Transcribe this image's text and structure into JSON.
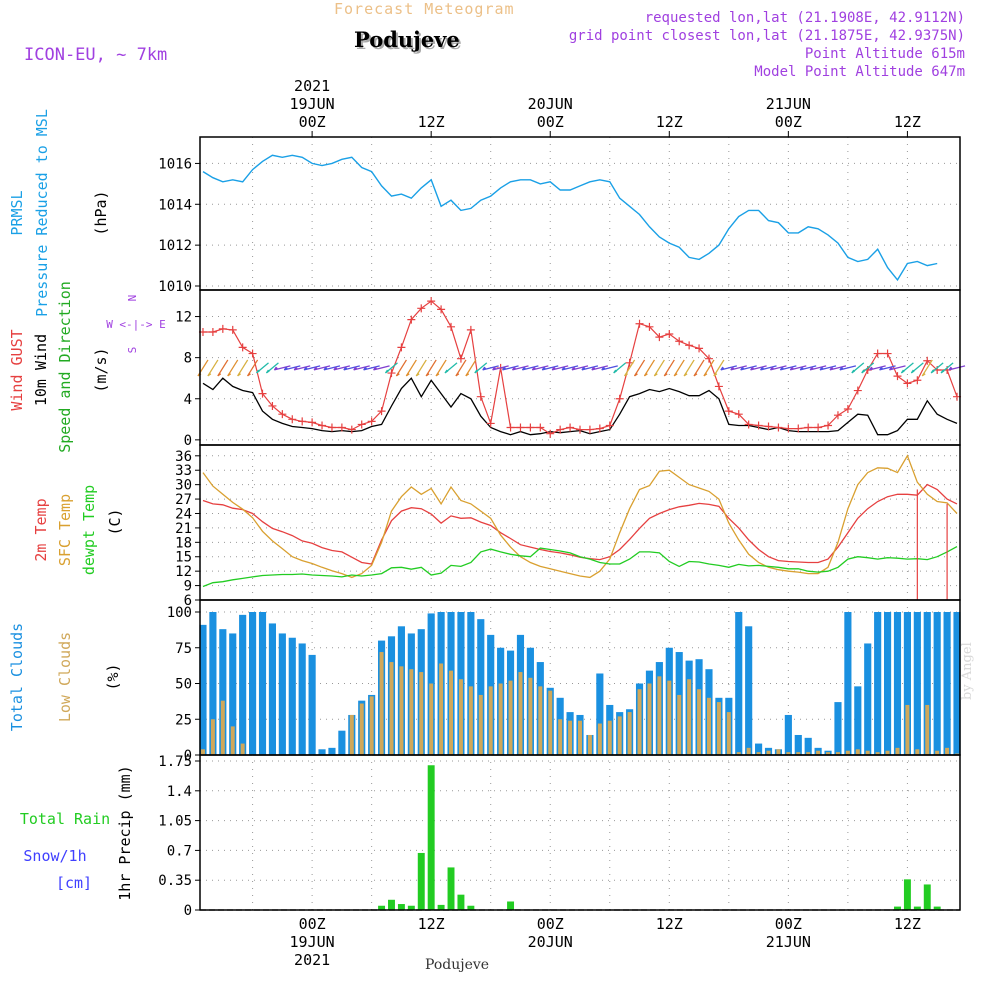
{
  "header": {
    "subtitle": "Forecast Meteogram",
    "location": "Podujeve",
    "model": "ICON-EU, ~ 7km",
    "requested": "requested lon,lat (21.1908E, 42.9112N)",
    "gridpoint": "grid point closest lon,lat (21.1875E, 42.9375N)",
    "point_alt": "Point Altitude 615m",
    "model_alt": "Model Point Altitude 647m",
    "footer": "Podujeve",
    "watermark": "by Angel"
  },
  "colors": {
    "pressure": "#1aa0e6",
    "gust": "#e64040",
    "wind": "#000000",
    "dir": "#22aa22",
    "temp": "#e64040",
    "sfc": "#d9a030",
    "dewpt": "#22cc22",
    "total_clouds": "#1a90e0",
    "low_clouds": "#d0a85a",
    "rain": "#22cc22",
    "snow": "#4040ff",
    "purple": "#a040e0"
  },
  "time_axis": {
    "top_labels": [
      {
        "t": 0,
        "lines": [
          "2021",
          "19JUN",
          "00Z"
        ]
      },
      {
        "t": 12,
        "lines": [
          "12Z"
        ]
      },
      {
        "t": 24,
        "lines": [
          "20JUN",
          "00Z"
        ]
      },
      {
        "t": 36,
        "lines": [
          "12Z"
        ]
      },
      {
        "t": 48,
        "lines": [
          "21JUN",
          "00Z"
        ]
      },
      {
        "t": 60,
        "lines": [
          "12Z"
        ]
      }
    ],
    "bottom_labels": [
      {
        "t": 0,
        "lines": [
          "00Z",
          "19JUN",
          "2021"
        ]
      },
      {
        "t": 12,
        "lines": [
          "12Z"
        ]
      },
      {
        "t": 24,
        "lines": [
          "00Z",
          "20JUN"
        ]
      },
      {
        "t": 36,
        "lines": [
          "12Z"
        ]
      },
      {
        "t": 48,
        "lines": [
          "00Z",
          "21JUN"
        ]
      },
      {
        "t": 60,
        "lines": [
          "12Z"
        ]
      }
    ]
  },
  "panel_labels": {
    "pressure": [
      "PRMSL",
      "Pressure Reduced to MSL",
      "(hPa)"
    ],
    "wind": [
      "Wind GUST",
      "10m Wind",
      "Speed and Direction",
      "(m/s)"
    ],
    "compass": [
      "N",
      "W <-|-> E",
      "S"
    ],
    "temp": [
      "2m Temp",
      "SFC Temp",
      "dewpt Temp",
      "(C)"
    ],
    "clouds": [
      "Total Clouds",
      "Low Clouds",
      "(%)"
    ],
    "precip": [
      "Total Rain",
      "Snow/1h",
      "[cm]",
      "1hr Precip (mm)"
    ]
  },
  "chart_data": [
    {
      "type": "line",
      "title": "PRMSL Pressure Reduced to MSL",
      "ylabel": "(hPa)",
      "ylim": [
        1010,
        1017
      ],
      "yticks": [
        "1010",
        "1012",
        "1014",
        "1016"
      ],
      "t": [
        -11,
        -10,
        -9,
        -8,
        -7,
        -6,
        -5,
        -4,
        -3,
        -2,
        -1,
        0,
        1,
        2,
        3,
        4,
        5,
        6,
        7,
        8,
        9,
        10,
        11,
        12,
        13,
        14,
        15,
        16,
        17,
        18,
        19,
        20,
        21,
        22,
        23,
        24,
        25,
        26,
        27,
        28,
        29,
        30,
        31,
        32,
        33,
        34,
        35,
        36,
        37,
        38,
        39,
        40,
        41,
        42,
        43,
        44,
        45,
        46,
        47,
        48,
        49,
        50,
        51,
        52,
        53,
        54,
        55,
        56,
        57,
        58,
        59,
        60,
        61,
        62,
        63,
        64,
        65
      ],
      "series": [
        {
          "name": "PRMSL",
          "values": [
            1015.6,
            1015.3,
            1015.1,
            1015.2,
            1015.1,
            1015.7,
            1016.1,
            1016.4,
            1016.3,
            1016.4,
            1016.3,
            1016.0,
            1015.9,
            1016.0,
            1016.2,
            1016.3,
            1015.8,
            1015.6,
            1014.9,
            1014.4,
            1014.5,
            1014.3,
            1014.8,
            1015.2,
            1013.9,
            1014.2,
            1013.7,
            1013.8,
            1014.2,
            1014.4,
            1014.8,
            1015.1,
            1015.2,
            1015.2,
            1015.0,
            1015.1,
            1014.7,
            1014.7,
            1014.9,
            1015.1,
            1015.2,
            1015.1,
            1014.3,
            1013.9,
            1013.5,
            1012.9,
            1012.4,
            1012.1,
            1011.9,
            1011.4,
            1011.3,
            1011.6,
            1012.0,
            1012.8,
            1013.4,
            1013.7,
            1013.7,
            1013.2,
            1013.1,
            1012.6,
            1012.6,
            1012.9,
            1012.8,
            1012.5,
            1012.1,
            1011.4,
            1011.2,
            1011.3,
            1011.8,
            1010.9,
            1010.3,
            1011.1,
            1011.2,
            1011.0,
            1011.1
          ]
        }
      ]
    },
    {
      "type": "line",
      "title": "Wind GUST / 10m Wind Speed and Direction",
      "ylabel": "(m/s)",
      "ylim": [
        -0.5,
        14
      ],
      "yticks": [
        "0",
        "4",
        "8",
        "12"
      ],
      "t": [
        -11,
        -10,
        -9,
        -8,
        -7,
        -6,
        -5,
        -4,
        -3,
        -2,
        -1,
        0,
        1,
        2,
        3,
        4,
        5,
        6,
        7,
        8,
        9,
        10,
        11,
        12,
        13,
        14,
        15,
        16,
        17,
        18,
        19,
        20,
        21,
        22,
        23,
        24,
        25,
        26,
        27,
        28,
        29,
        30,
        31,
        32,
        33,
        34,
        35,
        36,
        37,
        38,
        39,
        40,
        41,
        42,
        43,
        44,
        45,
        46,
        47,
        48,
        49,
        50,
        51,
        52,
        53,
        54,
        55,
        56,
        57,
        58,
        59,
        60,
        61,
        62,
        63,
        64,
        65
      ],
      "series": [
        {
          "name": "Wind GUST",
          "values": [
            10.5,
            10.5,
            10.8,
            10.7,
            9.0,
            8.4,
            4.5,
            3.3,
            2.5,
            2.0,
            1.8,
            1.7,
            1.4,
            1.2,
            1.2,
            1.0,
            1.5,
            1.8,
            2.8,
            6.5,
            9.0,
            11.7,
            12.8,
            13.5,
            12.7,
            11.0,
            7.9,
            10.7,
            4.2,
            1.6,
            7.0,
            1.2,
            1.2,
            1.2,
            1.2,
            0.6,
            1.0,
            1.2,
            1.0,
            1.0,
            1.1,
            1.4,
            4.0,
            7.5,
            11.3,
            11.0,
            10.0,
            10.3,
            9.6,
            9.2,
            8.9,
            7.9,
            5.2,
            2.8,
            2.5,
            1.5,
            1.4,
            1.3,
            1.2,
            1.1,
            1.1,
            1.2,
            1.2,
            1.4,
            2.4,
            3.0,
            4.8,
            6.8,
            8.4,
            8.4,
            6.2,
            5.5,
            5.8,
            7.7,
            6.8,
            6.8,
            4.2
          ]
        },
        {
          "name": "10m Wind",
          "values": [
            5.5,
            4.9,
            6.0,
            5.2,
            4.8,
            4.6,
            2.8,
            2.0,
            1.6,
            1.3,
            1.2,
            1.1,
            0.9,
            0.8,
            0.9,
            0.8,
            0.9,
            1.3,
            1.5,
            3.3,
            5.0,
            6.0,
            4.2,
            5.8,
            4.5,
            3.2,
            4.5,
            4.0,
            2.3,
            1.2,
            0.8,
            0.5,
            0.8,
            0.5,
            0.6,
            0.8,
            0.7,
            0.8,
            0.9,
            0.6,
            0.8,
            1.0,
            2.5,
            4.2,
            4.5,
            4.9,
            4.7,
            5.0,
            4.7,
            4.3,
            4.3,
            4.8,
            4.0,
            1.5,
            1.4,
            1.4,
            1.2,
            1.0,
            1.2,
            0.9,
            0.8,
            0.8,
            0.8,
            0.8,
            0.9,
            1.7,
            2.5,
            2.4,
            0.5,
            0.5,
            0.9,
            2.0,
            2.0,
            3.8,
            2.5,
            2.0,
            1.6
          ]
        }
      ]
    },
    {
      "type": "line",
      "title": "2m Temp / SFC Temp / dewpt Temp",
      "ylabel": "(C)",
      "ylim": [
        6,
        37
      ],
      "yticks": [
        "6",
        "9",
        "12",
        "15",
        "18",
        "21",
        "24",
        "27",
        "30",
        "33",
        "36"
      ],
      "t": [
        -11,
        -10,
        -9,
        -8,
        -7,
        -6,
        -5,
        -4,
        -3,
        -2,
        -1,
        0,
        1,
        2,
        3,
        4,
        5,
        6,
        7,
        8,
        9,
        10,
        11,
        12,
        13,
        14,
        15,
        16,
        17,
        18,
        19,
        20,
        21,
        22,
        23,
        24,
        25,
        26,
        27,
        28,
        29,
        30,
        31,
        32,
        33,
        34,
        35,
        36,
        37,
        38,
        39,
        40,
        41,
        42,
        43,
        44,
        45,
        46,
        47,
        48,
        49,
        50,
        51,
        52,
        53,
        54,
        55,
        56,
        57,
        58,
        59,
        60,
        61,
        62,
        63,
        64,
        65
      ],
      "series": [
        {
          "name": "2m Temp",
          "values": [
            26.7,
            26.0,
            25.8,
            25.1,
            24.8,
            24.0,
            22.3,
            20.9,
            20.2,
            19.4,
            18.3,
            17.8,
            16.9,
            16.3,
            16.0,
            14.9,
            13.8,
            13.5,
            18.5,
            22.5,
            24.5,
            25.2,
            25.0,
            23.9,
            22.0,
            23.5,
            23.0,
            23.1,
            22.2,
            21.5,
            20.0,
            18.8,
            17.5,
            17.0,
            16.5,
            16.1,
            15.8,
            15.4,
            14.9,
            14.6,
            14.4,
            15.0,
            16.5,
            18.6,
            20.9,
            23.0,
            24.0,
            24.8,
            25.4,
            25.7,
            26.1,
            25.9,
            25.5,
            23.0,
            21.0,
            18.5,
            16.5,
            15.0,
            14.2,
            14.0,
            13.9,
            13.8,
            13.8,
            14.5,
            17.0,
            20.0,
            23.0,
            25.0,
            26.5,
            27.5,
            28.0,
            28.0,
            27.8,
            30.0,
            29.0,
            27.0,
            26.0
          ]
        },
        {
          "name": "SFC Temp",
          "values": [
            32.5,
            29.7,
            28.0,
            26.3,
            24.9,
            23.1,
            20.3,
            18.3,
            16.7,
            15.0,
            14.2,
            13.6,
            12.8,
            12.1,
            11.5,
            10.7,
            11.5,
            13.2,
            18.0,
            24.5,
            27.5,
            29.5,
            28.0,
            29.2,
            26.0,
            29.5,
            26.7,
            26.0,
            24.5,
            23.0,
            19.5,
            17.0,
            15.0,
            13.8,
            13.0,
            12.5,
            12.0,
            11.5,
            11.0,
            10.7,
            12.0,
            14.5,
            20.0,
            25.0,
            29.0,
            29.8,
            32.8,
            33.0,
            31.5,
            30.0,
            29.3,
            28.6,
            27.0,
            22.0,
            18.5,
            15.5,
            13.8,
            12.8,
            12.3,
            12.0,
            11.8,
            11.5,
            11.5,
            12.8,
            18.0,
            25.0,
            30.0,
            32.5,
            33.5,
            33.4,
            32.5,
            36.0,
            30.5,
            28.0,
            26.5,
            26.2,
            24.0
          ]
        },
        {
          "name": "dewpt Temp",
          "values": [
            8.8,
            9.6,
            9.8,
            10.2,
            10.5,
            10.8,
            11.1,
            11.2,
            11.3,
            11.3,
            11.4,
            11.2,
            11.1,
            11.0,
            10.8,
            11.2,
            11.0,
            11.2,
            11.5,
            12.7,
            12.8,
            12.4,
            12.8,
            11.2,
            11.6,
            13.2,
            13.0,
            13.8,
            16.0,
            16.6,
            16.0,
            15.5,
            15.2,
            15.0,
            16.8,
            16.5,
            16.2,
            15.8,
            15.0,
            14.5,
            13.8,
            13.5,
            13.5,
            14.5,
            16.0,
            16.0,
            15.8,
            14.0,
            13.0,
            14.0,
            13.9,
            13.5,
            13.2,
            12.8,
            13.4,
            13.1,
            13.2,
            13.0,
            12.8,
            12.5,
            12.5,
            12.0,
            11.8,
            12.0,
            12.8,
            14.5,
            15.0,
            14.8,
            14.5,
            14.8,
            14.7,
            14.5,
            14.6,
            14.4,
            15.0,
            16.0,
            17.1
          ]
        }
      ]
    },
    {
      "type": "bar",
      "title": "Total Clouds / Low Clouds",
      "ylabel": "(%)",
      "ylim": [
        0,
        100
      ],
      "yticks": [
        "0",
        "25",
        "50",
        "75",
        "100"
      ],
      "t": [
        -11,
        -10,
        -9,
        -8,
        -7,
        -6,
        -5,
        -4,
        -3,
        -2,
        -1,
        0,
        1,
        2,
        3,
        4,
        5,
        6,
        7,
        8,
        9,
        10,
        11,
        12,
        13,
        14,
        15,
        16,
        17,
        18,
        19,
        20,
        21,
        22,
        23,
        24,
        25,
        26,
        27,
        28,
        29,
        30,
        31,
        32,
        33,
        34,
        35,
        36,
        37,
        38,
        39,
        40,
        41,
        42,
        43,
        44,
        45,
        46,
        47,
        48,
        49,
        50,
        51,
        52,
        53,
        54,
        55,
        56,
        57,
        58,
        59,
        60,
        61,
        62,
        63,
        64,
        65
      ],
      "series": [
        {
          "name": "Total Clouds",
          "values": [
            91,
            100,
            88,
            85,
            98,
            100,
            100,
            92,
            85,
            82,
            78,
            70,
            4,
            5,
            17,
            28,
            38,
            42,
            80,
            83,
            90,
            85,
            88,
            99,
            100,
            100,
            100,
            100,
            95,
            84,
            75,
            73,
            84,
            75,
            65,
            47,
            40,
            30,
            28,
            14,
            57,
            35,
            30,
            32,
            50,
            59,
            65,
            75,
            72,
            66,
            67,
            60,
            40,
            40,
            100,
            90,
            8,
            5,
            4,
            28,
            14,
            12,
            5,
            3,
            37,
            100,
            48,
            78,
            100,
            100,
            100,
            100,
            100,
            100,
            100,
            100,
            100
          ]
        },
        {
          "name": "Low Clouds",
          "values": [
            4,
            25,
            38,
            20,
            8,
            0,
            0,
            0,
            0,
            0,
            0,
            0,
            0,
            0,
            0,
            28,
            36,
            41,
            72,
            65,
            62,
            60,
            58,
            50,
            64,
            59,
            53,
            48,
            42,
            48,
            50,
            52,
            58,
            54,
            48,
            45,
            25,
            24,
            24,
            14,
            22,
            24,
            27,
            30,
            46,
            50,
            55,
            52,
            42,
            53,
            46,
            40,
            37,
            30,
            2,
            5,
            2,
            3,
            4,
            2,
            2,
            2,
            3,
            2,
            2,
            3,
            4,
            3,
            2,
            3,
            5,
            35,
            4,
            35,
            3,
            5,
            1
          ]
        }
      ]
    },
    {
      "type": "bar",
      "title": "1hr Precip",
      "ylabel": "1hr Precip (mm)",
      "ylim": [
        0,
        1.75
      ],
      "yticks": [
        "0",
        "0.35",
        "0.7",
        "1.05",
        "1.4",
        "1.75"
      ],
      "t": [
        7,
        8,
        9,
        10,
        11,
        12,
        13,
        14,
        15,
        16,
        20,
        59,
        60,
        61,
        62,
        63
      ],
      "series": [
        {
          "name": "Total Rain",
          "values": [
            0.05,
            0.12,
            0.07,
            0.05,
            0.67,
            1.7,
            0.06,
            0.5,
            0.18,
            0.05,
            0.1,
            0.04,
            0.36,
            0.04,
            0.3,
            0.04
          ]
        }
      ]
    }
  ]
}
